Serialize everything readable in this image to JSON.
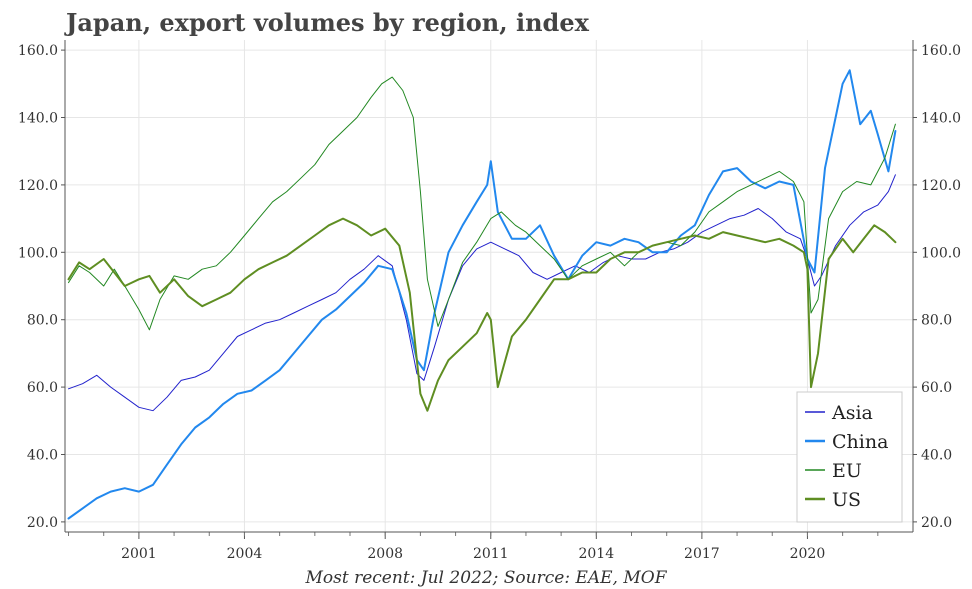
{
  "chart_data": {
    "type": "line",
    "title": "Japan, export volumes by region, index",
    "caption": "Most recent: Jul 2022; Source: EAE, MOF",
    "xlabel": "",
    "ylabel": "",
    "xlim": [
      1998.9,
      2023.0
    ],
    "ylim": [
      17,
      163
    ],
    "y_ticks": [
      20,
      40,
      60,
      80,
      100,
      120,
      140,
      160
    ],
    "y_tick_labels": [
      "20.0",
      "40.0",
      "60.0",
      "80.0",
      "100.0",
      "120.0",
      "140.0",
      "160.0"
    ],
    "x_ticks": [
      2001,
      2004,
      2008,
      2011,
      2014,
      2017,
      2020
    ],
    "x_tick_labels": [
      "2001",
      "2004",
      "2008",
      "2011",
      "2014",
      "2017",
      "2020"
    ],
    "x_minor_ticks": [
      1999,
      2000,
      2001,
      2002,
      2003,
      2004,
      2005,
      2006,
      2007,
      2008,
      2009,
      2010,
      2011,
      2012,
      2013,
      2014,
      2015,
      2016,
      2017,
      2018,
      2019,
      2020,
      2021,
      2022
    ],
    "grid": true,
    "y_axis_right": true,
    "legend_position": "bottom-right",
    "series": [
      {
        "name": "Asia",
        "color": "#2222cc",
        "stroke": 1,
        "x": [
          1999.0,
          1999.4,
          1999.8,
          2000.2,
          2000.6,
          2001.0,
          2001.4,
          2001.8,
          2002.2,
          2002.6,
          2003.0,
          2003.4,
          2003.8,
          2004.2,
          2004.6,
          2005.0,
          2005.4,
          2005.8,
          2006.2,
          2006.6,
          2007.0,
          2007.4,
          2007.8,
          2008.2,
          2008.6,
          2008.9,
          2009.1,
          2009.4,
          2009.8,
          2010.2,
          2010.6,
          2011.0,
          2011.4,
          2011.8,
          2012.2,
          2012.6,
          2013.0,
          2013.4,
          2013.8,
          2014.2,
          2014.6,
          2015.0,
          2015.4,
          2015.8,
          2016.2,
          2016.6,
          2017.0,
          2017.4,
          2017.8,
          2018.2,
          2018.6,
          2019.0,
          2019.4,
          2019.8,
          2020.0,
          2020.2,
          2020.4,
          2020.8,
          2021.2,
          2021.6,
          2022.0,
          2022.3,
          2022.5
        ],
        "values": [
          59.5,
          61,
          63.5,
          60,
          57,
          54,
          53,
          57,
          62,
          63,
          65,
          70,
          75,
          77,
          79,
          80,
          82,
          84,
          86,
          88,
          92,
          95,
          99,
          96,
          80,
          64,
          62,
          72,
          86,
          96,
          101,
          103,
          101,
          99,
          94,
          92,
          94,
          96,
          94,
          97,
          99,
          98,
          98,
          100,
          101,
          103,
          106,
          108,
          110,
          111,
          113,
          110,
          106,
          104,
          98,
          90,
          93,
          102,
          108,
          112,
          114,
          118,
          123
        ]
      },
      {
        "name": "China",
        "color": "#2288ee",
        "stroke": 2,
        "x": [
          1999.0,
          1999.4,
          1999.8,
          2000.2,
          2000.6,
          2001.0,
          2001.4,
          2001.8,
          2002.2,
          2002.6,
          2003.0,
          2003.4,
          2003.8,
          2004.2,
          2004.6,
          2005.0,
          2005.4,
          2005.8,
          2006.2,
          2006.6,
          2007.0,
          2007.4,
          2007.8,
          2008.2,
          2008.6,
          2008.9,
          2009.1,
          2009.4,
          2009.8,
          2010.2,
          2010.6,
          2010.9,
          2011.0,
          2011.2,
          2011.6,
          2012.0,
          2012.4,
          2012.8,
          2013.2,
          2013.6,
          2014.0,
          2014.4,
          2014.8,
          2015.2,
          2015.6,
          2016.0,
          2016.4,
          2016.8,
          2017.2,
          2017.6,
          2018.0,
          2018.4,
          2018.8,
          2019.2,
          2019.6,
          2020.0,
          2020.2,
          2020.5,
          2020.8,
          2021.0,
          2021.2,
          2021.5,
          2021.8,
          2022.0,
          2022.3,
          2022.5
        ],
        "values": [
          21,
          24,
          27,
          29,
          30,
          29,
          31,
          37,
          43,
          48,
          51,
          55,
          58,
          59,
          62,
          65,
          70,
          75,
          80,
          83,
          87,
          91,
          96,
          95,
          82,
          68,
          65,
          82,
          100,
          108,
          115,
          120,
          127,
          112,
          104,
          104,
          108,
          99,
          92,
          99,
          103,
          102,
          104,
          103,
          100,
          100,
          105,
          108,
          117,
          124,
          125,
          121,
          119,
          121,
          120,
          98,
          94,
          125,
          140,
          150,
          154,
          138,
          142,
          135,
          124,
          136
        ]
      },
      {
        "name": "EU",
        "color": "#228822",
        "stroke": 1,
        "x": [
          1999.0,
          1999.3,
          1999.6,
          2000.0,
          2000.3,
          2000.6,
          2001.0,
          2001.3,
          2001.6,
          2002.0,
          2002.4,
          2002.8,
          2003.2,
          2003.6,
          2004.0,
          2004.4,
          2004.8,
          2005.2,
          2005.6,
          2006.0,
          2006.4,
          2006.8,
          2007.2,
          2007.6,
          2007.9,
          2008.2,
          2008.5,
          2008.8,
          2009.0,
          2009.2,
          2009.5,
          2009.8,
          2010.2,
          2010.6,
          2011.0,
          2011.3,
          2011.7,
          2012.0,
          2012.4,
          2012.8,
          2013.2,
          2013.6,
          2014.0,
          2014.4,
          2014.8,
          2015.2,
          2015.6,
          2016.0,
          2016.4,
          2016.8,
          2017.2,
          2017.6,
          2018.0,
          2018.4,
          2018.8,
          2019.2,
          2019.6,
          2019.9,
          2020.1,
          2020.3,
          2020.6,
          2021.0,
          2021.4,
          2021.8,
          2022.2,
          2022.5
        ],
        "values": [
          91,
          96,
          94,
          90,
          95,
          90,
          83,
          77,
          86,
          93,
          92,
          95,
          96,
          100,
          105,
          110,
          115,
          118,
          122,
          126,
          132,
          136,
          140,
          146,
          150,
          152,
          148,
          140,
          118,
          92,
          78,
          86,
          97,
          103,
          110,
          112,
          108,
          106,
          102,
          98,
          92,
          96,
          98,
          100,
          96,
          100,
          102,
          103,
          102,
          106,
          112,
          115,
          118,
          120,
          122,
          124,
          121,
          115,
          82,
          86,
          110,
          118,
          121,
          120,
          128,
          138
        ]
      },
      {
        "name": "US",
        "color": "#5f8e22",
        "stroke": 2,
        "x": [
          1999.0,
          1999.3,
          1999.6,
          2000.0,
          2000.3,
          2000.6,
          2001.0,
          2001.3,
          2001.6,
          2002.0,
          2002.4,
          2002.8,
          2003.2,
          2003.6,
          2004.0,
          2004.4,
          2004.8,
          2005.2,
          2005.6,
          2006.0,
          2006.4,
          2006.8,
          2007.2,
          2007.6,
          2008.0,
          2008.4,
          2008.7,
          2009.0,
          2009.2,
          2009.5,
          2009.8,
          2010.2,
          2010.6,
          2010.9,
          2011.0,
          2011.2,
          2011.6,
          2012.0,
          2012.4,
          2012.8,
          2013.2,
          2013.6,
          2014.0,
          2014.4,
          2014.8,
          2015.2,
          2015.6,
          2016.0,
          2016.4,
          2016.8,
          2017.2,
          2017.6,
          2018.0,
          2018.4,
          2018.8,
          2019.2,
          2019.6,
          2019.9,
          2020.0,
          2020.1,
          2020.3,
          2020.6,
          2021.0,
          2021.3,
          2021.6,
          2021.9,
          2022.2,
          2022.5
        ],
        "values": [
          92,
          97,
          95,
          98,
          94,
          90,
          92,
          93,
          88,
          92,
          87,
          84,
          86,
          88,
          92,
          95,
          97,
          99,
          102,
          105,
          108,
          110,
          108,
          105,
          107,
          102,
          88,
          58,
          53,
          62,
          68,
          72,
          76,
          82,
          80,
          60,
          75,
          80,
          86,
          92,
          92,
          94,
          94,
          98,
          100,
          100,
          102,
          103,
          104,
          105,
          104,
          106,
          105,
          104,
          103,
          104,
          102,
          100,
          95,
          60,
          70,
          98,
          104,
          100,
          104,
          108,
          106,
          103
        ]
      }
    ]
  }
}
